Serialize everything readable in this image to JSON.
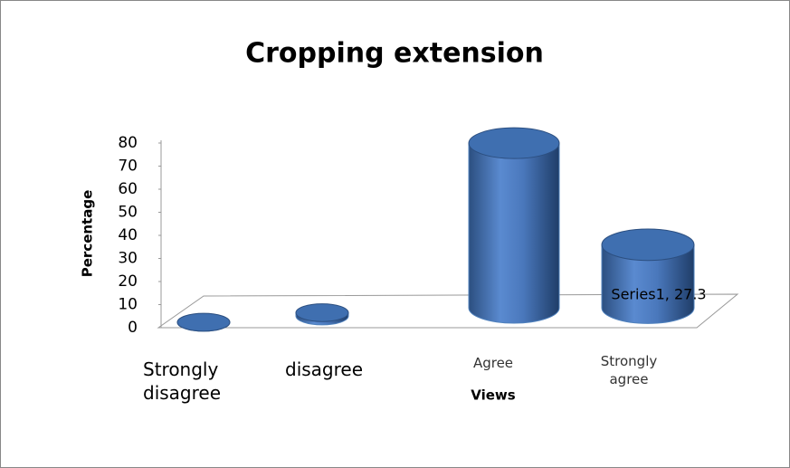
{
  "chart_data": {
    "type": "bar3d",
    "title": "Cropping extension",
    "x_label": "Views",
    "y_label": "Percentage",
    "categories": [
      "Strongly disagree",
      "disagree",
      "Agree",
      "Strongly agree"
    ],
    "series": [
      {
        "name": "Series1",
        "color": "#4f81bd",
        "values": [
          0,
          1.4,
          71.3,
          27.3
        ],
        "value_labels": [
          null,
          null,
          null,
          "Series1, 27.3"
        ]
      }
    ],
    "ylim": [
      0,
      80
    ],
    "yticks": [
      0,
      10,
      20,
      30,
      40,
      50,
      60,
      70,
      80
    ],
    "grid": false
  }
}
